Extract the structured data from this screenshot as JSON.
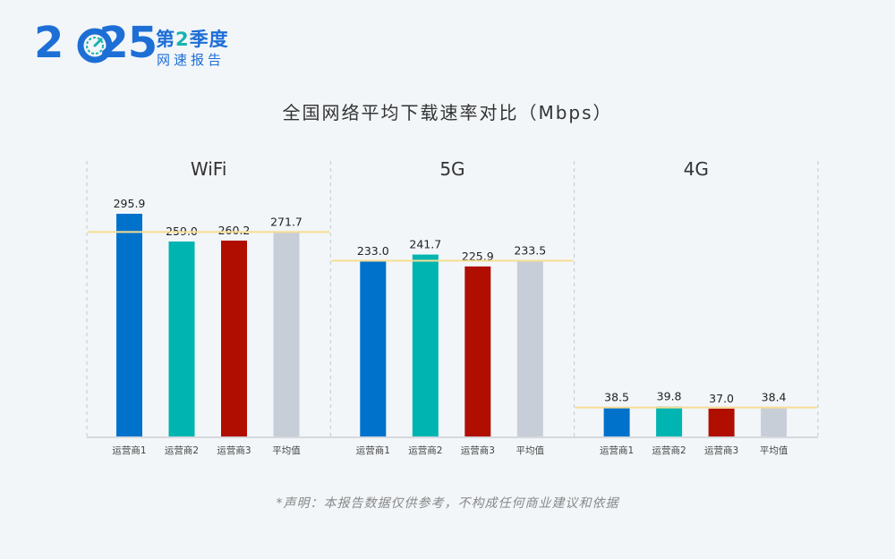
{
  "header": {
    "year": "2025",
    "quarter_prefix": "第",
    "quarter_number": "2",
    "quarter_suffix": "季度",
    "report_name": "网速报告",
    "gauge_icon": "speedometer-icon"
  },
  "footnote": "*声明：本报告数据仅供参考，不构成任何商业建议和依据",
  "colors": {
    "carrier1": "#0072cc",
    "carrier2": "#00b5b1",
    "carrier3": "#b00e00",
    "average": "#c8ced8",
    "average_line": "#f7dd93",
    "brand": "#1d6fd6"
  },
  "chart_data": {
    "type": "bar",
    "title": "全国网络平均下载速率对比（Mbps）",
    "categories": [
      "运营商1",
      "运营商2",
      "运营商3",
      "平均值"
    ],
    "ylim": [
      0,
      330
    ],
    "grid": false,
    "groups": [
      {
        "name": "WiFi",
        "values": [
          295.9,
          259.0,
          260.2,
          271.7
        ],
        "labels": [
          "295.9",
          "259.0",
          "260.2",
          "271.7"
        ]
      },
      {
        "name": "5G",
        "values": [
          233.0,
          241.7,
          225.9,
          233.5
        ],
        "labels": [
          "233.0",
          "241.7",
          "225.9",
          "233.5"
        ]
      },
      {
        "name": "4G",
        "values": [
          38.5,
          39.8,
          37.0,
          38.4
        ],
        "labels": [
          "38.5",
          "39.8",
          "37.0",
          "38.4"
        ]
      }
    ]
  }
}
